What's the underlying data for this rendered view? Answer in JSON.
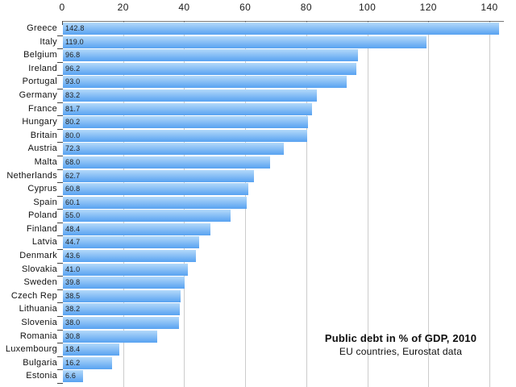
{
  "chart_data": {
    "type": "bar",
    "orientation": "horizontal",
    "title": "Public debt in % of GDP, 2010",
    "subtitle": "EU countries, Eurostat data",
    "categories": [
      "Greece",
      "Italy",
      "Belgium",
      "Ireland",
      "Portugal",
      "Germany",
      "France",
      "Hungary",
      "Britain",
      "Austria",
      "Malta",
      "Netherlands",
      "Cyprus",
      "Spain",
      "Poland",
      "Finland",
      "Latvia",
      "Denmark",
      "Slovakia",
      "Sweden",
      "Czech Rep",
      "Lithuania",
      "Slovenia",
      "Romania",
      "Luxembourg",
      "Bulgaria",
      "Estonia"
    ],
    "values": [
      142.8,
      119.0,
      96.8,
      96.2,
      93.0,
      83.2,
      81.7,
      80.2,
      80.0,
      72.3,
      68.0,
      62.7,
      60.8,
      60.1,
      55.0,
      48.4,
      44.7,
      43.6,
      41.0,
      39.8,
      38.5,
      38.2,
      38.0,
      30.8,
      18.4,
      16.2,
      6.6
    ],
    "value_labels": [
      "142.8",
      "119.0",
      "96.8",
      "96.2",
      "93.0",
      "83.2",
      "81.7",
      "80.2",
      "80.0",
      "72.3",
      "68.0",
      "62.7",
      "60.8",
      "60.1",
      "55.0",
      "48.4",
      "44.7",
      "43.6",
      "41.0",
      "39.8",
      "38.5",
      "38.2",
      "38.0",
      "30.8",
      "18.4",
      "16.2",
      "6.6"
    ],
    "x_ticks": [
      "0",
      "20",
      "40",
      "60",
      "80",
      "100",
      "120",
      "140"
    ],
    "x_tick_values": [
      0,
      20,
      40,
      60,
      80,
      100,
      120,
      140
    ],
    "xlim": [
      0,
      140
    ],
    "grid": true,
    "legend": "none",
    "colors": {
      "bar_gradient_top": "#b3d9fa",
      "bar_gradient_bottom": "#58a2f1",
      "gridline": "#cccccc",
      "axis_line": "#777777",
      "tick_mark": "#444444",
      "value_text": "#222222",
      "label_text": "#111111",
      "background": "#ffffff"
    }
  }
}
